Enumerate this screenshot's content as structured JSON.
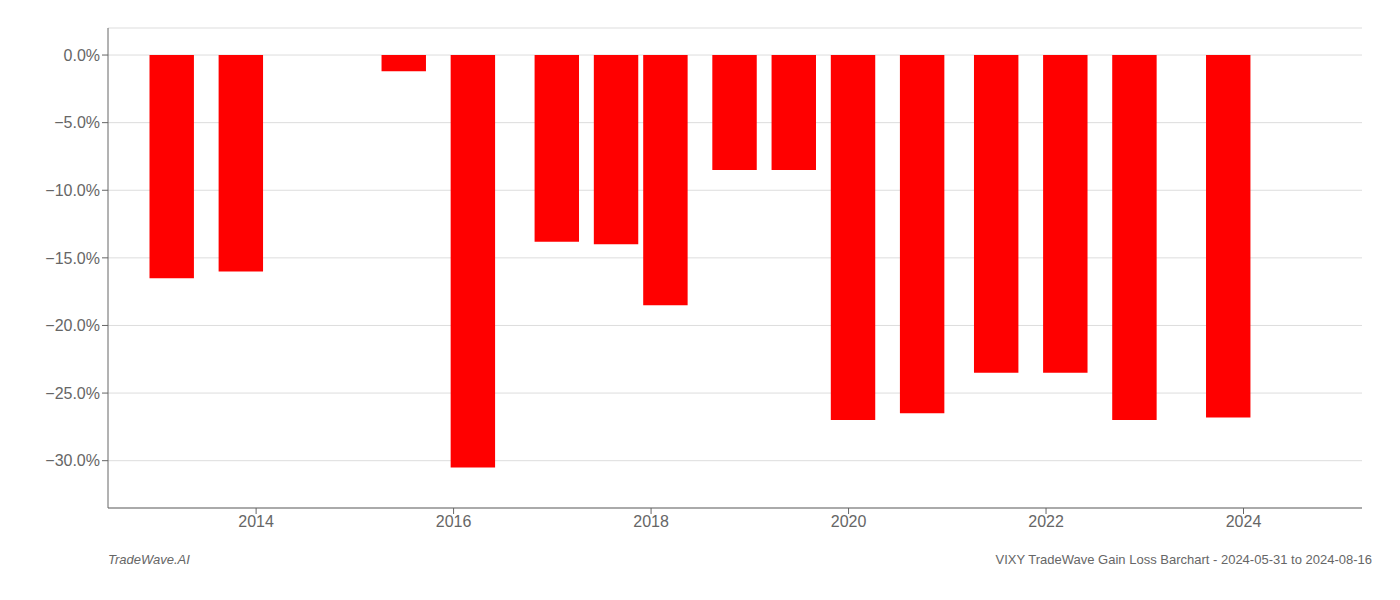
{
  "chart_data": {
    "type": "bar",
    "title": "VIXY TradeWave Gain Loss Barchart - 2024-05-31 to 2024-08-16",
    "annotations": [
      "TradeWave.AI"
    ],
    "x": [
      2013.15,
      2013.85,
      2015.5,
      2016.2,
      2017.05,
      2017.65,
      2018.15,
      2018.85,
      2019.45,
      2020.05,
      2020.75,
      2021.5,
      2022.2,
      2022.9,
      2023.85
    ],
    "values": [
      -16.5,
      -16.0,
      -1.2,
      -30.5,
      -13.8,
      -14.0,
      -18.5,
      -8.5,
      -8.5,
      -27.0,
      -26.5,
      -23.5,
      -23.5,
      -27.0,
      -26.8
    ],
    "color": "#ff0000",
    "xlim": [
      2012.5,
      2025.2
    ],
    "xticks": [
      2014,
      2016,
      2018,
      2020,
      2022,
      2024
    ],
    "ylim": [
      -33.5,
      2.0
    ],
    "yticks": [
      {
        "value": 0.0,
        "label": "0.0%"
      },
      {
        "value": -5.0,
        "label": "−5.0%"
      },
      {
        "value": -10.0,
        "label": "−10.0%"
      },
      {
        "value": -15.0,
        "label": "−15.0%"
      },
      {
        "value": -20.0,
        "label": "−20.0%"
      },
      {
        "value": -25.0,
        "label": "−25.0%"
      },
      {
        "value": -30.0,
        "label": "−30.0%"
      }
    ],
    "grid": "y"
  }
}
